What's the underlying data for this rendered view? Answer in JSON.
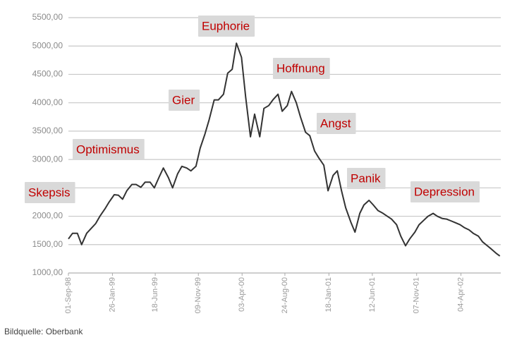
{
  "chart_data": {
    "type": "line",
    "x": [
      "1998-09-01",
      "1998-09-15",
      "1998-10-01",
      "1998-10-15",
      "1998-11-01",
      "1998-11-15",
      "1998-12-01",
      "1998-12-15",
      "1999-01-01",
      "1999-01-15",
      "1999-02-01",
      "1999-02-15",
      "1999-03-01",
      "1999-03-15",
      "1999-04-01",
      "1999-04-15",
      "1999-05-01",
      "1999-05-15",
      "1999-06-01",
      "1999-06-15",
      "1999-07-01",
      "1999-07-15",
      "1999-08-01",
      "1999-08-15",
      "1999-09-01",
      "1999-09-15",
      "1999-10-01",
      "1999-10-15",
      "1999-11-01",
      "1999-11-15",
      "1999-12-01",
      "1999-12-15",
      "2000-01-01",
      "2000-01-15",
      "2000-02-01",
      "2000-02-15",
      "2000-03-01",
      "2000-03-15",
      "2000-04-01",
      "2000-04-15",
      "2000-05-01",
      "2000-05-15",
      "2000-06-01",
      "2000-06-15",
      "2000-07-01",
      "2000-07-15",
      "2000-08-01",
      "2000-08-15",
      "2000-09-01",
      "2000-09-15",
      "2000-10-01",
      "2000-10-15",
      "2000-11-01",
      "2000-11-15",
      "2000-12-01",
      "2000-12-15",
      "2001-01-01",
      "2001-01-15",
      "2001-02-01",
      "2001-02-15",
      "2001-03-01",
      "2001-03-15",
      "2001-04-01",
      "2001-04-15",
      "2001-05-01",
      "2001-05-15",
      "2001-06-01",
      "2001-06-15",
      "2001-07-01",
      "2001-07-15",
      "2001-08-01",
      "2001-08-15",
      "2001-09-01",
      "2001-09-15",
      "2001-10-01",
      "2001-10-15",
      "2001-11-01",
      "2001-11-15",
      "2001-12-01",
      "2001-12-15",
      "2002-01-01",
      "2002-01-15",
      "2002-02-01",
      "2002-02-15",
      "2002-03-01",
      "2002-03-15",
      "2002-04-01",
      "2002-04-15",
      "2002-05-01",
      "2002-05-15",
      "2002-06-01",
      "2002-06-15",
      "2002-07-01",
      "2002-07-15",
      "2002-08-01",
      "2002-08-12"
    ],
    "series": [
      {
        "color": "#333333",
        "values": [
          1600,
          1700,
          1700,
          1500,
          1700,
          1780,
          1870,
          2000,
          2130,
          2250,
          2380,
          2370,
          2300,
          2450,
          2560,
          2560,
          2510,
          2600,
          2600,
          2500,
          2690,
          2850,
          2680,
          2500,
          2750,
          2880,
          2850,
          2800,
          2880,
          3200,
          3450,
          3700,
          4050,
          4050,
          4150,
          4520,
          4590,
          5050,
          4800,
          4100,
          3400,
          3800,
          3400,
          3900,
          3950,
          4050,
          4150,
          3850,
          3950,
          4200,
          4000,
          3750,
          3480,
          3420,
          3150,
          3030,
          2900,
          2450,
          2720,
          2800,
          2450,
          2150,
          1900,
          1720,
          2050,
          2200,
          2280,
          2200,
          2100,
          2060,
          2000,
          1950,
          1850,
          1650,
          1480,
          1600,
          1720,
          1850,
          1930,
          2000,
          2050,
          2000,
          1960,
          1950,
          1920,
          1890,
          1850,
          1800,
          1760,
          1700,
          1650,
          1550,
          1480,
          1420,
          1340,
          1300
        ]
      }
    ],
    "xlim": [
      "1998-09-01",
      "2002-08-15"
    ],
    "xticks": [
      {
        "value": "1998-09-01",
        "label": "01-Sep-98"
      },
      {
        "value": "1999-01-26",
        "label": "26-Jan-99"
      },
      {
        "value": "1999-06-18",
        "label": "18-Jun-99"
      },
      {
        "value": "1999-11-09",
        "label": "09-Nov-99"
      },
      {
        "value": "2000-04-03",
        "label": "03-Apr-00"
      },
      {
        "value": "2000-08-24",
        "label": "24-Aug-00"
      },
      {
        "value": "2001-01-18",
        "label": "18-Jan-01"
      },
      {
        "value": "2001-06-12",
        "label": "12-Jun-01"
      },
      {
        "value": "2001-11-07",
        "label": "07-Nov-01"
      },
      {
        "value": "2002-04-04",
        "label": "04-Apr-02"
      }
    ],
    "ylim": [
      1000,
      5500
    ],
    "yticks": [
      {
        "value": 1000,
        "label": "1000,00"
      },
      {
        "value": 1500,
        "label": "1500,00"
      },
      {
        "value": 2000,
        "label": "2000,00"
      },
      {
        "value": 2500,
        "label": "2500,00"
      },
      {
        "value": 3000,
        "label": "3000,00"
      },
      {
        "value": 3500,
        "label": "3500,00"
      },
      {
        "value": 4000,
        "label": "4000,00"
      },
      {
        "value": 4500,
        "label": "4500,00"
      },
      {
        "value": 5000,
        "label": "5000,00"
      },
      {
        "value": 5500,
        "label": "5500,00"
      }
    ],
    "grid": true,
    "annotations": [
      "Skepsis",
      "Optimismus",
      "Gier",
      "Euphorie",
      "Hoffnung",
      "Angst",
      "Panik",
      "Depression"
    ],
    "source": "Bildquelle: Oberbank"
  }
}
